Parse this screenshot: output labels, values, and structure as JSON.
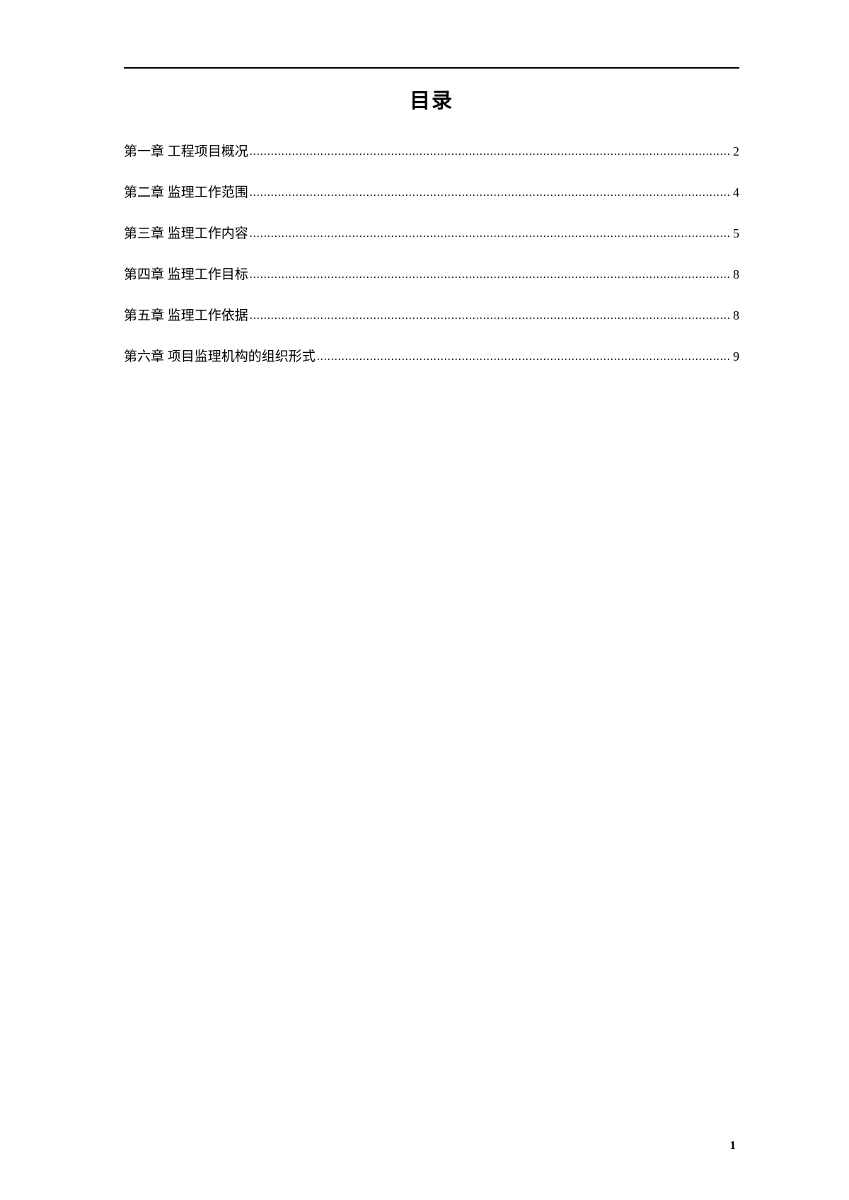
{
  "title": "目录",
  "toc": {
    "entries": [
      {
        "label": "第一章 工程项目概况",
        "page": "2"
      },
      {
        "label": "第二章 监理工作范围",
        "page": "4"
      },
      {
        "label": "第三章 监理工作内容",
        "page": "5"
      },
      {
        "label": "第四章 监理工作目标",
        "page": "8"
      },
      {
        "label": "第五章 监理工作依据",
        "page": "8"
      },
      {
        "label": "第六章 项目监理机构的组织形式",
        "page": "9"
      }
    ]
  },
  "pageNumber": "1",
  "styling": {
    "pageWidth": 1200,
    "pageHeight": 1697,
    "backgroundColor": "#ffffff",
    "textColor": "#000000",
    "titleFontSize": 29,
    "entryFontSize": 19,
    "pageNumFontSize": 17,
    "lineColor": "#000000",
    "lineWidth": 2.5,
    "fontFamily": "SimSun"
  }
}
